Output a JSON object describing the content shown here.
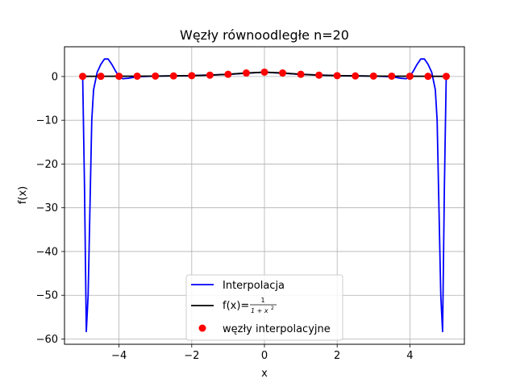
{
  "chart_data": {
    "type": "line",
    "title": "Węzły równoodległe n=20",
    "xlabel": "x",
    "ylabel": "f(x)",
    "xlim": [
      -5.5,
      5.5
    ],
    "ylim": [
      -61.2,
      6.8
    ],
    "xticks": [
      -4,
      -2,
      0,
      2,
      4
    ],
    "xtick_labels": [
      "−4",
      "−2",
      "0",
      "2",
      "4"
    ],
    "yticks": [
      0,
      -10,
      -20,
      -30,
      -40,
      -50,
      -60
    ],
    "ytick_labels": [
      "0",
      "−10",
      "−20",
      "−30",
      "−40",
      "−50",
      "−60"
    ],
    "grid": true,
    "legend_position": "lower-center",
    "legend": {
      "interp": "Interpolacja",
      "func_prefix": "f(x)=",
      "func_num": "1",
      "func_den": "1 + x",
      "func_exp": "2",
      "nodes": "węzły interpolacyjne"
    },
    "series": [
      {
        "name": "Interpolacja",
        "kind": "line",
        "color": "#0000ff",
        "x": [
          -5.0,
          -4.95,
          -4.9,
          -4.85,
          -4.8,
          -4.75,
          -4.7,
          -4.6,
          -4.5,
          -4.4,
          -4.3,
          -4.2,
          -4.1,
          -4.0,
          -3.9,
          -3.75,
          -3.5,
          -3.0,
          -2.0,
          -1.0,
          0.0,
          1.0,
          2.0,
          3.0,
          3.5,
          3.75,
          3.9,
          4.0,
          4.1,
          4.2,
          4.3,
          4.4,
          4.5,
          4.6,
          4.7,
          4.75,
          4.8,
          4.85,
          4.9,
          4.95,
          5.0
        ],
        "y": [
          0.04,
          -25,
          -58.3,
          -50,
          -30,
          -10,
          -3,
          1,
          2.8,
          4,
          4,
          2.8,
          1.3,
          0,
          -0.5,
          -0.4,
          -0.05,
          0.1,
          0.2,
          0.5,
          1.0,
          0.5,
          0.2,
          0.1,
          -0.05,
          -0.4,
          -0.5,
          0,
          1.3,
          2.8,
          4,
          4,
          2.8,
          1,
          -3,
          -10,
          -30,
          -50,
          -58.3,
          -25,
          0.04
        ]
      },
      {
        "name": "f(x)=1/(1+x²)",
        "kind": "line",
        "color": "#000000",
        "x": [
          -5.0,
          -4.5,
          -4.0,
          -3.5,
          -3.0,
          -2.5,
          -2.0,
          -1.5,
          -1.0,
          -0.5,
          0.0,
          0.5,
          1.0,
          1.5,
          2.0,
          2.5,
          3.0,
          3.5,
          4.0,
          4.5,
          5.0
        ],
        "y": [
          0.038,
          0.047,
          0.059,
          0.075,
          0.1,
          0.138,
          0.2,
          0.308,
          0.5,
          0.8,
          1.0,
          0.8,
          0.5,
          0.308,
          0.2,
          0.138,
          0.1,
          0.075,
          0.059,
          0.047,
          0.038
        ]
      },
      {
        "name": "węzły interpolacyjne",
        "kind": "scatter",
        "color": "#ff0000",
        "x": [
          -5.0,
          -4.5,
          -4.0,
          -3.5,
          -3.0,
          -2.5,
          -2.0,
          -1.5,
          -1.0,
          -0.5,
          0.0,
          0.5,
          1.0,
          1.5,
          2.0,
          2.5,
          3.0,
          3.5,
          4.0,
          4.5,
          5.0
        ],
        "y": [
          0.038,
          0.047,
          0.059,
          0.075,
          0.1,
          0.138,
          0.2,
          0.308,
          0.5,
          0.8,
          1.0,
          0.8,
          0.5,
          0.308,
          0.2,
          0.138,
          0.1,
          0.075,
          0.059,
          0.047,
          0.038
        ]
      }
    ]
  }
}
